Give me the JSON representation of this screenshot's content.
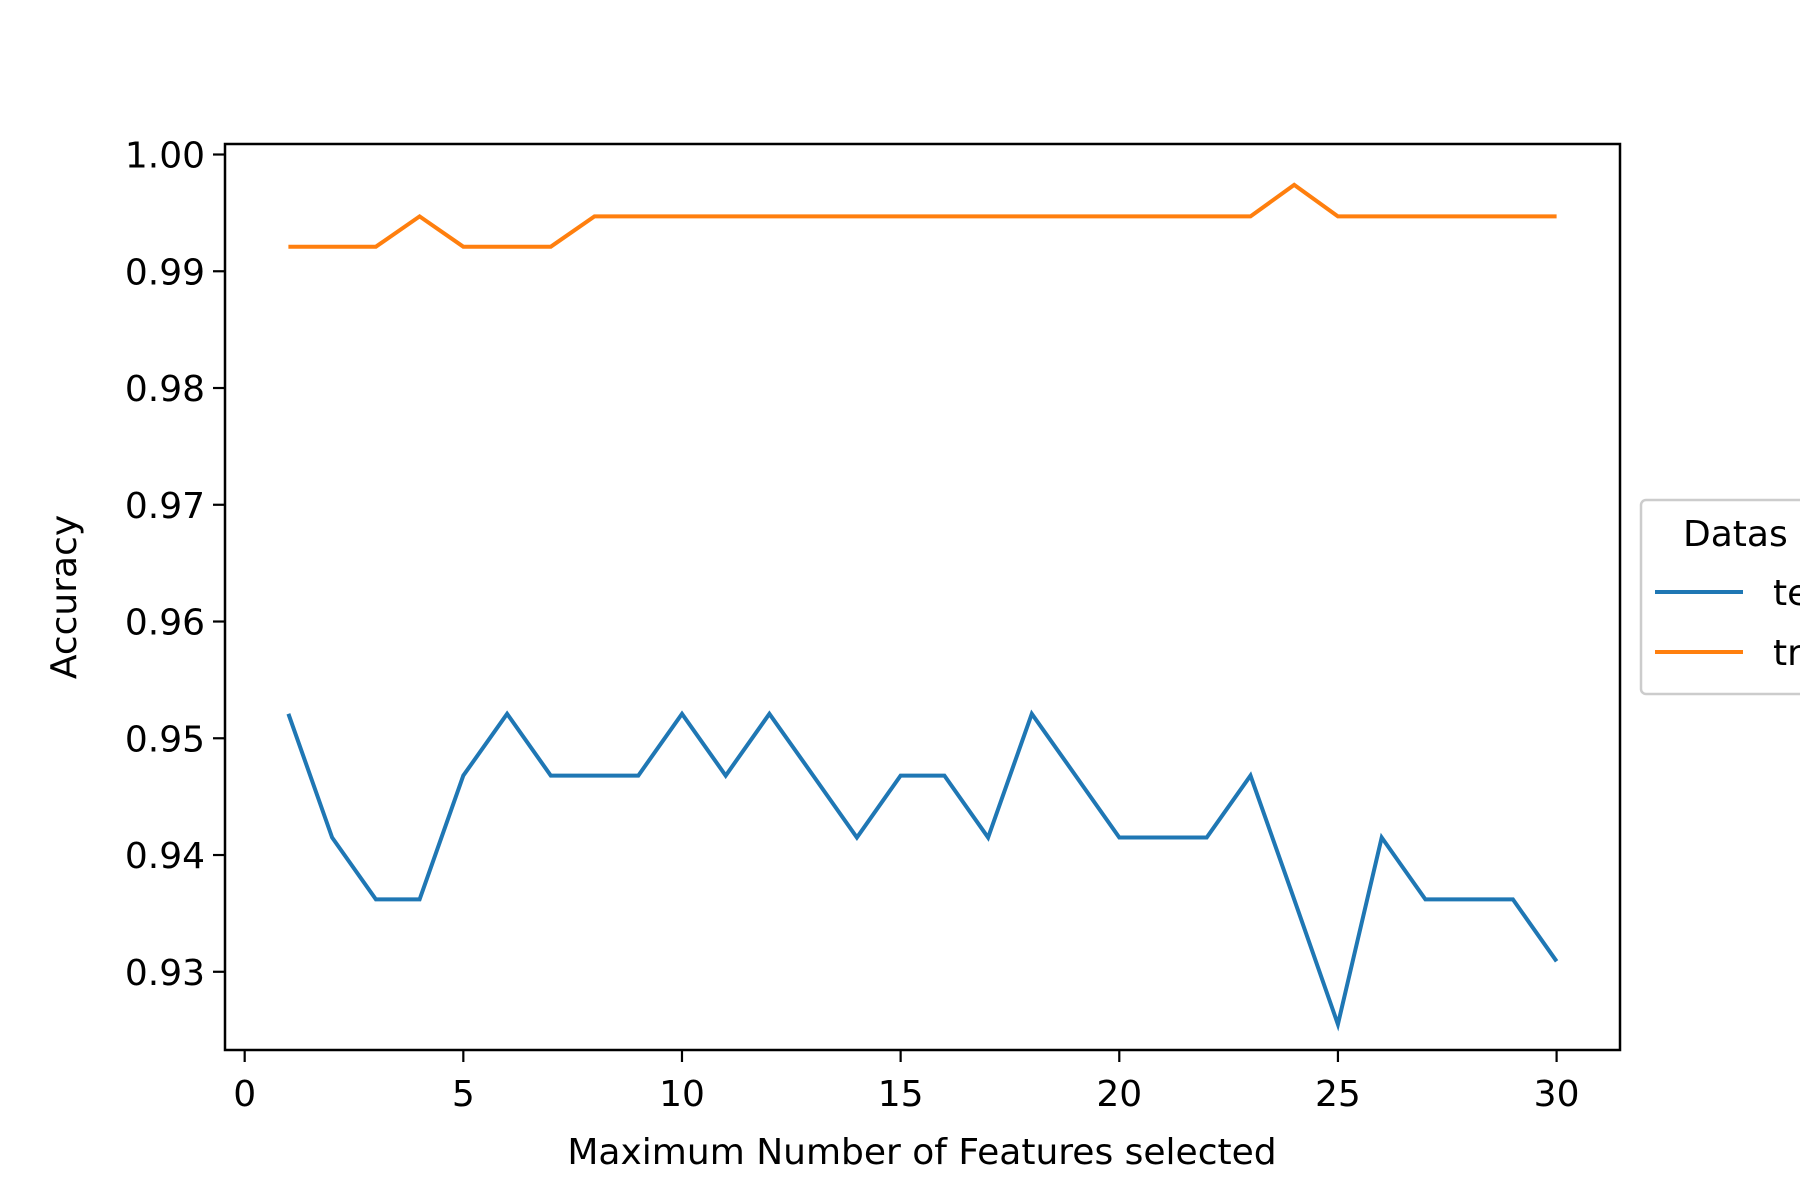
{
  "chart_data": {
    "type": "line",
    "title": "",
    "xlabel": "Maximum Number of Features selected",
    "ylabel": "Accuracy",
    "xlim": [
      -0.45,
      31.45
    ],
    "ylim": [
      0.9233,
      1.0009
    ],
    "xticks": [
      0,
      5,
      10,
      15,
      20,
      25,
      30
    ],
    "xtick_labels": [
      "0",
      "5",
      "10",
      "15",
      "20",
      "25",
      "30"
    ],
    "yticks": [
      0.93,
      0.94,
      0.95,
      0.96,
      0.97,
      0.98,
      0.99,
      1.0
    ],
    "ytick_labels": [
      "0.93",
      "0.94",
      "0.95",
      "0.96",
      "0.97",
      "0.98",
      "0.99",
      "1.00"
    ],
    "grid": false,
    "legend": {
      "title": "Datas",
      "placement": "right, clipped at figure edge"
    },
    "x": [
      1,
      2,
      3,
      4,
      5,
      6,
      7,
      8,
      9,
      10,
      11,
      12,
      13,
      14,
      15,
      16,
      17,
      18,
      19,
      20,
      21,
      22,
      23,
      24,
      25,
      26,
      27,
      28,
      29,
      30
    ],
    "series": [
      {
        "name": "te",
        "color": "#1f77b4",
        "values": [
          0.9521,
          0.9415,
          0.9362,
          0.9362,
          0.9468,
          0.9521,
          0.9468,
          0.9468,
          0.9468,
          0.9521,
          0.9468,
          0.9521,
          0.9468,
          0.9415,
          0.9468,
          0.9468,
          0.9415,
          0.9521,
          0.9468,
          0.9415,
          0.9415,
          0.9415,
          0.9468,
          0.9362,
          0.9255,
          0.9415,
          0.9362,
          0.9362,
          0.9362,
          0.9309
        ]
      },
      {
        "name": "tr",
        "color": "#ff7f0e",
        "values": [
          0.9921,
          0.9921,
          0.9921,
          0.9947,
          0.9921,
          0.9921,
          0.9921,
          0.9947,
          0.9947,
          0.9947,
          0.9947,
          0.9947,
          0.9947,
          0.9947,
          0.9947,
          0.9947,
          0.9947,
          0.9947,
          0.9947,
          0.9947,
          0.9947,
          0.9947,
          0.9947,
          0.9974,
          0.9947,
          0.9947,
          0.9947,
          0.9947,
          0.9947,
          0.9947
        ]
      }
    ]
  }
}
